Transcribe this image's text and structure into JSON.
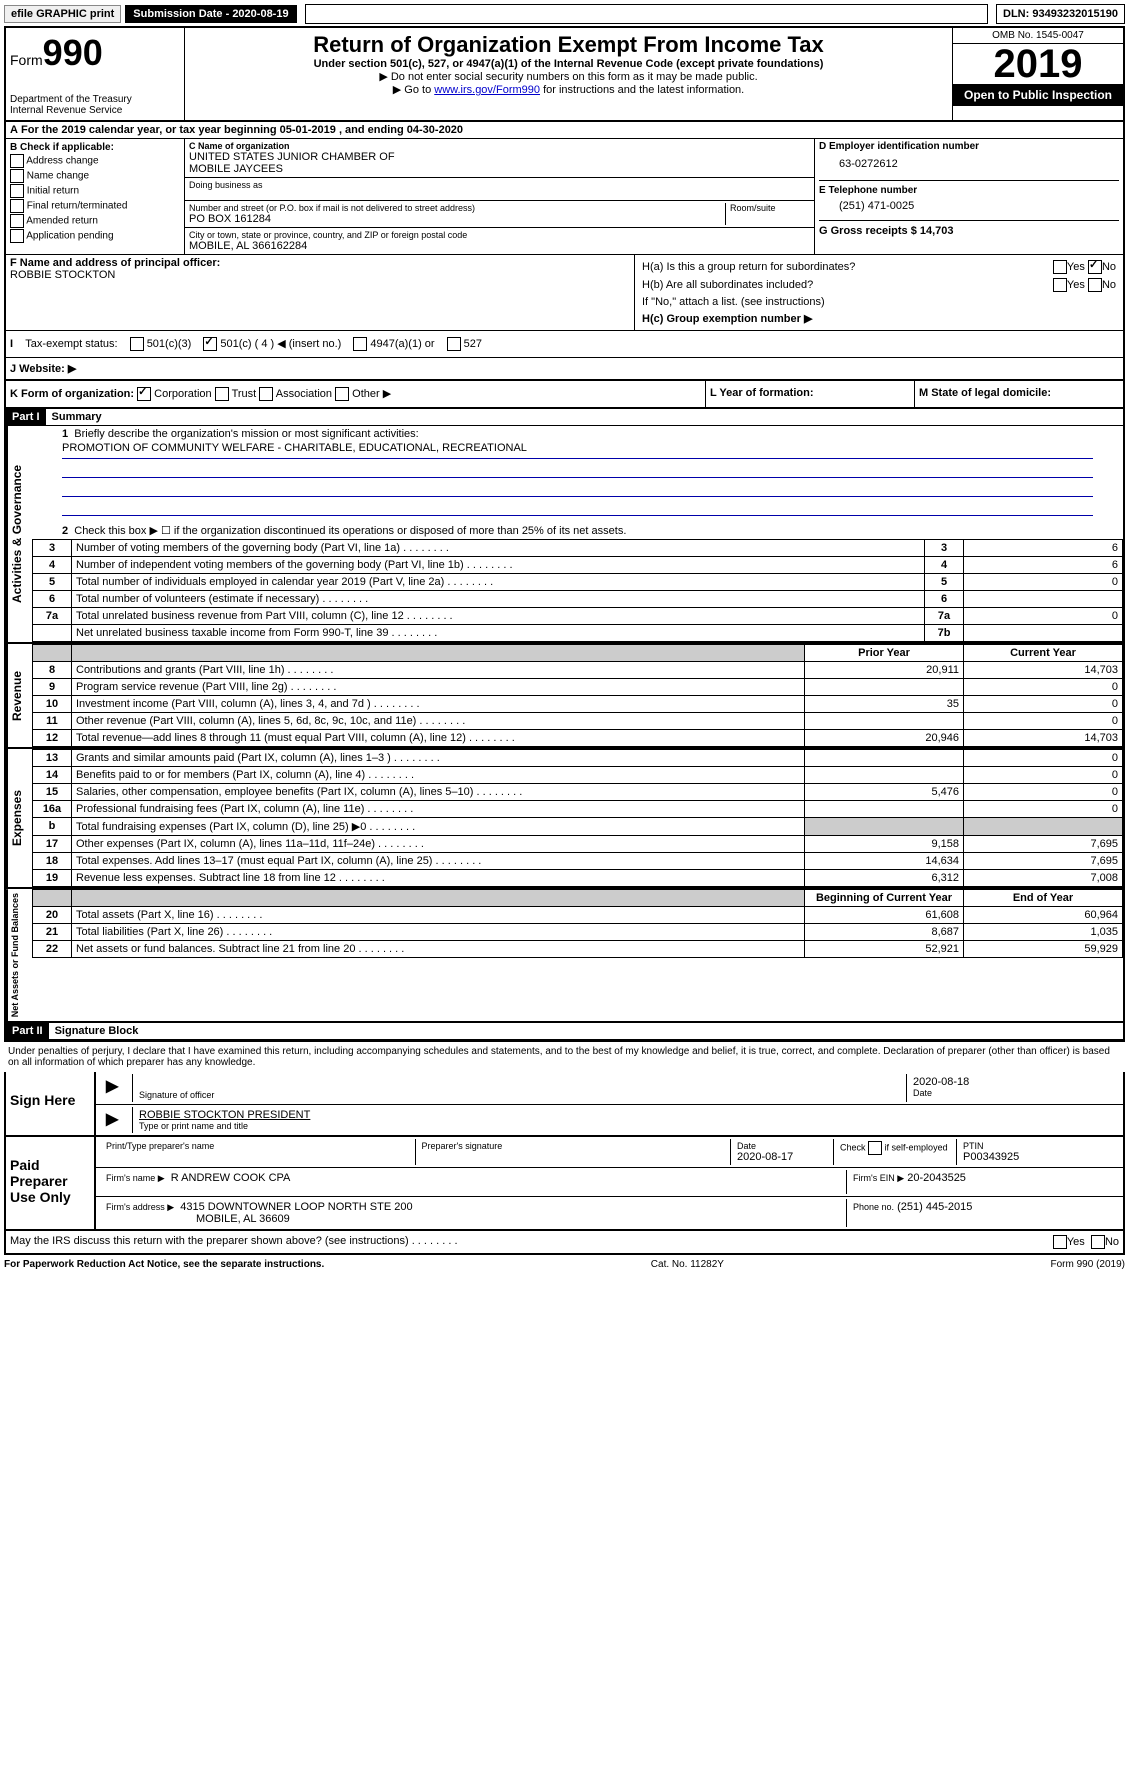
{
  "top": {
    "efile": "efile GRAPHIC print",
    "submission_label": "Submission Date - 2020-08-19",
    "dln": "DLN: 93493232015190"
  },
  "header": {
    "form_prefix": "Form",
    "form_num": "990",
    "dept": "Department of the Treasury",
    "irs": "Internal Revenue Service",
    "title": "Return of Organization Exempt From Income Tax",
    "subtitle": "Under section 501(c), 527, or 4947(a)(1) of the Internal Revenue Code (except private foundations)",
    "note1": "▶ Do not enter social security numbers on this form as it may be made public.",
    "note2_pre": "▶ Go to ",
    "note2_link": "www.irs.gov/Form990",
    "note2_post": " for instructions and the latest information.",
    "omb": "OMB No. 1545-0047",
    "year": "2019",
    "inspection": "Open to Public Inspection"
  },
  "a": {
    "text": "For the 2019 calendar year, or tax year beginning 05-01-2019    , and ending 04-30-2020"
  },
  "b": {
    "label": "B Check if applicable:",
    "o1": "Address change",
    "o2": "Name change",
    "o3": "Initial return",
    "o4": "Final return/terminated",
    "o5": "Amended return",
    "o6": "Application pending"
  },
  "c": {
    "name_label": "C Name of organization",
    "name": "UNITED STATES JUNIOR CHAMBER OF",
    "name2": "MOBILE JAYCEES",
    "dba_label": "Doing business as",
    "addr_label": "Number and street (or P.O. box if mail is not delivered to street address)",
    "room_label": "Room/suite",
    "addr": "PO BOX 161284",
    "city_label": "City or town, state or province, country, and ZIP or foreign postal code",
    "city": "MOBILE, AL  366162284"
  },
  "d": {
    "label": "D Employer identification number",
    "ein": "63-0272612",
    "e_label": "E Telephone number",
    "phone": "(251) 471-0025",
    "g_label": "G Gross receipts $ 14,703"
  },
  "f": {
    "label": "F  Name and address of principal officer:",
    "name": "ROBBIE STOCKTON"
  },
  "h": {
    "ha": "H(a)  Is this a group return for subordinates?",
    "hb": "H(b)  Are all subordinates included?",
    "hb_note": "If \"No,\" attach a list. (see instructions)",
    "hc": "H(c)  Group exemption number ▶",
    "yes": "Yes",
    "no": "No"
  },
  "i": {
    "label": "Tax-exempt status:",
    "o1": "501(c)(3)",
    "o2": "501(c) ( 4 ) ◀ (insert no.)",
    "o3": "4947(a)(1) or",
    "o4": "527"
  },
  "j": {
    "label": "J   Website: ▶"
  },
  "k": {
    "label": "K Form of organization:",
    "o1": "Corporation",
    "o2": "Trust",
    "o3": "Association",
    "o4": "Other ▶",
    "l": "L Year of formation:",
    "m": "M State of legal domicile:"
  },
  "part1": {
    "label": "Part I",
    "title": "Summary",
    "q1": "Briefly describe the organization's mission or most significant activities:",
    "mission": "PROMOTION OF COMMUNITY WELFARE - CHARITABLE, EDUCATIONAL, RECREATIONAL",
    "q2": "Check this box ▶ ☐  if the organization discontinued its operations or disposed of more than 25% of its net assets.",
    "side_gov": "Activities & Governance",
    "side_rev": "Revenue",
    "side_exp": "Expenses",
    "side_net": "Net Assets or Fund Balances",
    "rows_gov": [
      {
        "n": "3",
        "d": "Number of voting members of the governing body (Part VI, line 1a)",
        "r": "3",
        "v": "6"
      },
      {
        "n": "4",
        "d": "Number of independent voting members of the governing body (Part VI, line 1b)",
        "r": "4",
        "v": "6"
      },
      {
        "n": "5",
        "d": "Total number of individuals employed in calendar year 2019 (Part V, line 2a)",
        "r": "5",
        "v": "0"
      },
      {
        "n": "6",
        "d": "Total number of volunteers (estimate if necessary)",
        "r": "6",
        "v": ""
      },
      {
        "n": "7a",
        "d": "Total unrelated business revenue from Part VIII, column (C), line 12",
        "r": "7a",
        "v": "0"
      },
      {
        "n": "",
        "d": "Net unrelated business taxable income from Form 990-T, line 39",
        "r": "7b",
        "v": ""
      }
    ],
    "prior": "Prior Year",
    "current": "Current Year",
    "rows_rev": [
      {
        "n": "8",
        "d": "Contributions and grants (Part VIII, line 1h)",
        "p": "20,911",
        "c": "14,703"
      },
      {
        "n": "9",
        "d": "Program service revenue (Part VIII, line 2g)",
        "p": "",
        "c": "0"
      },
      {
        "n": "10",
        "d": "Investment income (Part VIII, column (A), lines 3, 4, and 7d )",
        "p": "35",
        "c": "0"
      },
      {
        "n": "11",
        "d": "Other revenue (Part VIII, column (A), lines 5, 6d, 8c, 9c, 10c, and 11e)",
        "p": "",
        "c": "0"
      },
      {
        "n": "12",
        "d": "Total revenue—add lines 8 through 11 (must equal Part VIII, column (A), line 12)",
        "p": "20,946",
        "c": "14,703"
      }
    ],
    "rows_exp": [
      {
        "n": "13",
        "d": "Grants and similar amounts paid (Part IX, column (A), lines 1–3 )",
        "p": "",
        "c": "0"
      },
      {
        "n": "14",
        "d": "Benefits paid to or for members (Part IX, column (A), line 4)",
        "p": "",
        "c": "0"
      },
      {
        "n": "15",
        "d": "Salaries, other compensation, employee benefits (Part IX, column (A), lines 5–10)",
        "p": "5,476",
        "c": "0"
      },
      {
        "n": "16a",
        "d": "Professional fundraising fees (Part IX, column (A), line 11e)",
        "p": "",
        "c": "0"
      },
      {
        "n": "b",
        "d": "Total fundraising expenses (Part IX, column (D), line 25) ▶0",
        "p": "gray",
        "c": "gray"
      },
      {
        "n": "17",
        "d": "Other expenses (Part IX, column (A), lines 11a–11d, 11f–24e)",
        "p": "9,158",
        "c": "7,695"
      },
      {
        "n": "18",
        "d": "Total expenses. Add lines 13–17 (must equal Part IX, column (A), line 25)",
        "p": "14,634",
        "c": "7,695"
      },
      {
        "n": "19",
        "d": "Revenue less expenses. Subtract line 18 from line 12",
        "p": "6,312",
        "c": "7,008"
      }
    ],
    "begin": "Beginning of Current Year",
    "end": "End of Year",
    "rows_net": [
      {
        "n": "20",
        "d": "Total assets (Part X, line 16)",
        "p": "61,608",
        "c": "60,964"
      },
      {
        "n": "21",
        "d": "Total liabilities (Part X, line 26)",
        "p": "8,687",
        "c": "1,035"
      },
      {
        "n": "22",
        "d": "Net assets or fund balances. Subtract line 21 from line 20",
        "p": "52,921",
        "c": "59,929"
      }
    ]
  },
  "part2": {
    "label": "Part II",
    "title": "Signature Block",
    "perjury": "Under penalties of perjury, I declare that I have examined this return, including accompanying schedules and statements, and to the best of my knowledge and belief, it is true, correct, and complete. Declaration of preparer (other than officer) is based on all information of which preparer has any knowledge."
  },
  "sign": {
    "label": "Sign Here",
    "sig_officer": "Signature of officer",
    "date": "2020-08-18",
    "date_label": "Date",
    "name": "ROBBIE STOCKTON  PRESIDENT",
    "name_label": "Type or print name and title"
  },
  "paid": {
    "label": "Paid Preparer Use Only",
    "h1": "Print/Type preparer's name",
    "h2": "Preparer's signature",
    "h3": "Date",
    "dateval": "2020-08-17",
    "h4_pre": "Check",
    "h4_post": "if self-employed",
    "h5": "PTIN",
    "ptin": "P00343925",
    "firm_label": "Firm's name    ▶",
    "firm": "R ANDREW COOK CPA",
    "ein_label": "Firm's EIN ▶",
    "ein": "20-2043525",
    "addr_label": "Firm's address ▶",
    "addr": "4315 DOWNTOWNER LOOP NORTH STE 200",
    "addr2": "MOBILE, AL  36609",
    "phone_label": "Phone no.",
    "phone": "(251) 445-2015"
  },
  "discuss": {
    "q": "May the IRS discuss this return with the preparer shown above? (see instructions)",
    "yes": "Yes",
    "no": "No"
  },
  "footer": {
    "left": "For Paperwork Reduction Act Notice, see the separate instructions.",
    "mid": "Cat. No. 11282Y",
    "right": "Form 990 (2019)"
  }
}
